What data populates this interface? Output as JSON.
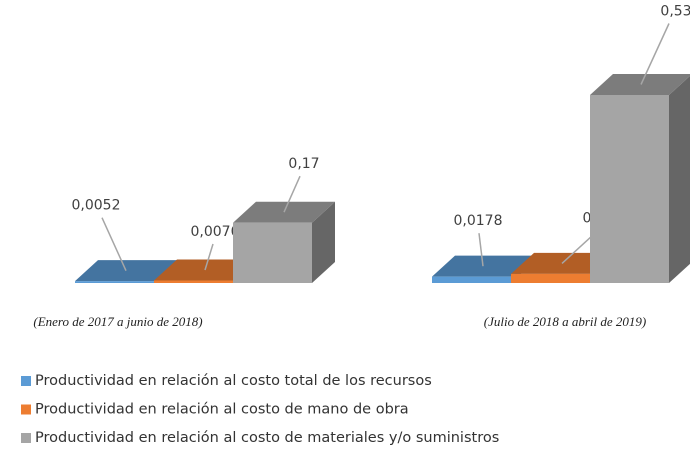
{
  "chart_data": {
    "type": "bar",
    "categories": [
      "(Enero de 2017 a junio de 2018)",
      "(Julio de 2018 a abril de 2019)"
    ],
    "series": [
      {
        "name": "Productividad en relación al costo total de los recursos",
        "color": "#5b9bd5",
        "values": [
          0.0052,
          0.0178
        ],
        "value_labels": [
          "0,0052",
          "0,0178"
        ]
      },
      {
        "name": "Productividad en relación al costo de mano de obra",
        "color": "#ed7d31",
        "values": [
          0.007,
          0.0256
        ],
        "value_labels": [
          "0,0070",
          "0,0256"
        ]
      },
      {
        "name": "Productividad en relación al costo de materiales y/o suministros",
        "color": "#a5a5a5",
        "values": [
          0.17,
          0.53
        ],
        "value_labels": [
          "0,17",
          "0,53"
        ]
      }
    ]
  }
}
